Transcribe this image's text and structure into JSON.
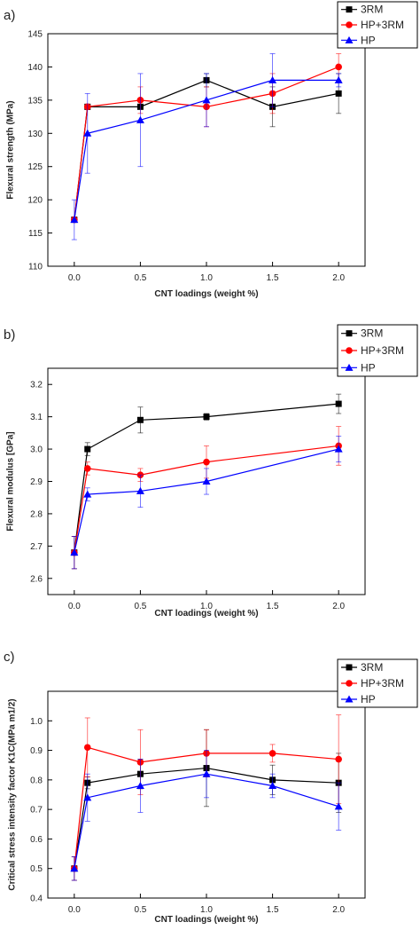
{
  "chart_data": [
    {
      "type": "line",
      "panel_label": "a)",
      "xlabel": "CNT loadings (weight %)",
      "ylabel": "Flexural strength (MPa)",
      "xlim": [
        -0.2,
        2.2
      ],
      "ylim": [
        110,
        145
      ],
      "xticks": [
        0.0,
        0.5,
        1.0,
        1.5,
        2.0
      ],
      "xtick_labels": [
        "0.0",
        "0.5",
        "1.0",
        "1.5",
        "2.0"
      ],
      "yticks": [
        110,
        115,
        120,
        125,
        130,
        135,
        140,
        145
      ],
      "ytick_labels": [
        "110",
        "115",
        "120",
        "125",
        "130",
        "135",
        "140",
        "145"
      ],
      "grid": false,
      "legend_position": "top-right",
      "series": [
        {
          "name": "3RM",
          "color": "#000000",
          "marker": "square",
          "x": [
            0.0,
            0.1,
            0.5,
            1.0,
            1.5,
            2.0
          ],
          "y": [
            117,
            134,
            134,
            138,
            134,
            136
          ],
          "err": [
            0,
            0,
            0,
            1,
            3,
            3
          ]
        },
        {
          "name": "HP+3RM",
          "color": "#ff0000",
          "marker": "circle",
          "x": [
            0.0,
            0.1,
            0.5,
            1.0,
            1.5,
            2.0
          ],
          "y": [
            117,
            134,
            135,
            134,
            136,
            140
          ],
          "err": [
            0,
            0,
            2,
            3,
            3,
            2
          ]
        },
        {
          "name": "HP",
          "color": "#0000ff",
          "marker": "triangle",
          "x": [
            0.0,
            0.1,
            0.5,
            1.0,
            1.5,
            2.0
          ],
          "y": [
            117,
            130,
            132,
            135,
            138,
            138
          ],
          "err": [
            3,
            6,
            7,
            4,
            4,
            1
          ]
        }
      ]
    },
    {
      "type": "line",
      "panel_label": "b)",
      "xlabel": "CNT loadings (weight %)",
      "ylabel": "Flexural modulus [GPa]",
      "xlim": [
        -0.2,
        2.2
      ],
      "ylim": [
        2.55,
        3.25
      ],
      "xticks": [
        0.0,
        0.5,
        1.0,
        1.5,
        2.0
      ],
      "xtick_labels": [
        "0.0",
        "0.5",
        "1.0",
        "1.5",
        "2.0"
      ],
      "yticks": [
        2.6,
        2.7,
        2.8,
        2.9,
        3.0,
        3.1,
        3.2
      ],
      "ytick_labels": [
        "2.6",
        "2.7",
        "2.8",
        "2.9",
        "3.0",
        "3.1",
        "3.2"
      ],
      "grid": false,
      "legend_position": "top-right",
      "series": [
        {
          "name": "3RM",
          "color": "#000000",
          "marker": "square",
          "x": [
            0.0,
            0.1,
            0.5,
            1.0,
            2.0
          ],
          "y": [
            2.68,
            3.0,
            3.09,
            3.1,
            3.14
          ],
          "err": [
            0.05,
            0.02,
            0.04,
            0.01,
            0.03
          ]
        },
        {
          "name": "HP+3RM",
          "color": "#ff0000",
          "marker": "circle",
          "x": [
            0.0,
            0.1,
            0.5,
            1.0,
            2.0
          ],
          "y": [
            2.68,
            2.94,
            2.92,
            2.96,
            3.01
          ],
          "err": [
            0.05,
            0.02,
            0.02,
            0.05,
            0.06
          ]
        },
        {
          "name": "HP",
          "color": "#0000ff",
          "marker": "triangle",
          "x": [
            0.0,
            0.1,
            0.5,
            1.0,
            2.0
          ],
          "y": [
            2.68,
            2.86,
            2.87,
            2.9,
            3.0
          ],
          "err": [
            0.05,
            0.02,
            0.05,
            0.04,
            0.04
          ]
        }
      ]
    },
    {
      "type": "line",
      "panel_label": "c)",
      "xlabel": "CNT loadings (weight %)",
      "ylabel": "Critical stress intensity factor K1C(MPa m1/2)",
      "xlim": [
        -0.2,
        2.2
      ],
      "ylim": [
        0.4,
        1.1
      ],
      "xticks": [
        0.0,
        0.5,
        1.0,
        1.5,
        2.0
      ],
      "xtick_labels": [
        "0.0",
        "0.5",
        "1.0",
        "1.5",
        "2.0"
      ],
      "yticks": [
        0.4,
        0.5,
        0.6,
        0.7,
        0.8,
        0.9,
        1.0
      ],
      "ytick_labels": [
        "0.4",
        "0.5",
        "0.6",
        "0.7",
        "0.8",
        "0.9",
        "1.0"
      ],
      "grid": false,
      "legend_position": "top-right",
      "series": [
        {
          "name": "3RM",
          "color": "#000000",
          "marker": "square",
          "x": [
            0.0,
            0.1,
            0.5,
            1.0,
            1.5,
            2.0
          ],
          "y": [
            0.5,
            0.79,
            0.82,
            0.84,
            0.8,
            0.79
          ],
          "err": [
            0.04,
            0.02,
            0.05,
            0.13,
            0.05,
            0.1
          ]
        },
        {
          "name": "HP+3RM",
          "color": "#ff0000",
          "marker": "circle",
          "x": [
            0.0,
            0.1,
            0.5,
            1.0,
            1.5,
            2.0
          ],
          "y": [
            0.5,
            0.91,
            0.86,
            0.89,
            0.89,
            0.87
          ],
          "err": [
            0.04,
            0.1,
            0.11,
            0.08,
            0.03,
            0.15
          ]
        },
        {
          "name": "HP",
          "color": "#0000ff",
          "marker": "triangle",
          "x": [
            0.0,
            0.1,
            0.5,
            1.0,
            1.5,
            2.0
          ],
          "y": [
            0.5,
            0.74,
            0.78,
            0.82,
            0.78,
            0.71
          ],
          "err": [
            0.04,
            0.08,
            0.09,
            0.08,
            0.04,
            0.08
          ]
        }
      ]
    }
  ]
}
